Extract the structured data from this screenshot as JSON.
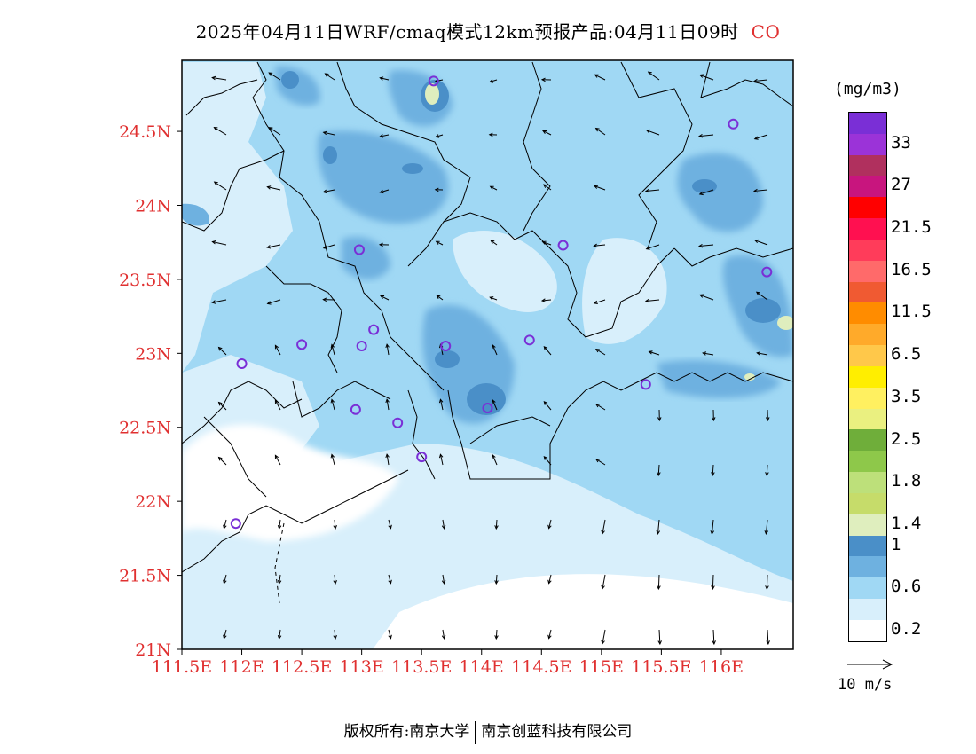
{
  "title": {
    "text": "2025年04月11日WRF/cmaq模式12km预报产品:04月11日09时",
    "species": "CO"
  },
  "axes": {
    "lat_ticks": [
      {
        "value": 24.5,
        "label": "24.5N"
      },
      {
        "value": 24.0,
        "label": "24N"
      },
      {
        "value": 23.5,
        "label": "23.5N"
      },
      {
        "value": 23.0,
        "label": "23N"
      },
      {
        "value": 22.5,
        "label": "22.5N"
      },
      {
        "value": 22.0,
        "label": "22N"
      },
      {
        "value": 21.5,
        "label": "21.5N"
      },
      {
        "value": 21.0,
        "label": "21N"
      }
    ],
    "lon_ticks": [
      {
        "value": 111.5,
        "label": "111.5E"
      },
      {
        "value": 112.0,
        "label": "112E"
      },
      {
        "value": 112.5,
        "label": "112.5E"
      },
      {
        "value": 113.0,
        "label": "113E"
      },
      {
        "value": 113.5,
        "label": "113.5E"
      },
      {
        "value": 114.0,
        "label": "114E"
      },
      {
        "value": 114.5,
        "label": "114.5E"
      },
      {
        "value": 115.0,
        "label": "115E"
      },
      {
        "value": 115.5,
        "label": "115.5E"
      },
      {
        "value": 116.0,
        "label": "116E"
      }
    ],
    "lon_range": [
      111.5,
      116.6
    ],
    "lat_range": [
      21.0,
      24.98
    ]
  },
  "legend": {
    "unit": "(mg/m3)",
    "colors": [
      "#7a2fd6",
      "#9b33d8",
      "#b0305e",
      "#c8157e",
      "#ff0000",
      "#ff1050",
      "#ff3c5a",
      "#ff6a6a",
      "#f05a32",
      "#ff8c00",
      "#ffaa2a",
      "#ffc84a",
      "#ffee00",
      "#fff060",
      "#eaf080",
      "#6fae3a",
      "#8ec84a",
      "#bde07a",
      "#c6dc6a",
      "#dfeebe",
      "#4a8fc8",
      "#6eb1e0",
      "#a0d8f4",
      "#d8effb",
      "#ffffff"
    ],
    "labels": [
      {
        "text": "33",
        "index": 1
      },
      {
        "text": "27",
        "index": 3
      },
      {
        "text": "21.5",
        "index": 5
      },
      {
        "text": "16.5",
        "index": 7
      },
      {
        "text": "11.5",
        "index": 9
      },
      {
        "text": "6.5",
        "index": 11
      },
      {
        "text": "3.5",
        "index": 13
      },
      {
        "text": "2.5",
        "index": 15
      },
      {
        "text": "1.8",
        "index": 17
      },
      {
        "text": "1.4",
        "index": 19
      },
      {
        "text": "1",
        "index": 20
      },
      {
        "text": "0.6",
        "index": 22
      },
      {
        "text": "0.2",
        "index": 24
      }
    ]
  },
  "vector_reference": {
    "label": "10 m/s"
  },
  "stations": [
    {
      "lon": 113.6,
      "lat": 24.84
    },
    {
      "lon": 116.1,
      "lat": 24.55
    },
    {
      "lon": 112.98,
      "lat": 23.7
    },
    {
      "lon": 114.68,
      "lat": 23.73
    },
    {
      "lon": 116.38,
      "lat": 23.55
    },
    {
      "lon": 113.1,
      "lat": 23.16
    },
    {
      "lon": 113.0,
      "lat": 23.05
    },
    {
      "lon": 113.7,
      "lat": 23.05
    },
    {
      "lon": 114.4,
      "lat": 23.09
    },
    {
      "lon": 112.5,
      "lat": 23.06
    },
    {
      "lon": 112.0,
      "lat": 22.93
    },
    {
      "lon": 115.37,
      "lat": 22.79
    },
    {
      "lon": 114.05,
      "lat": 22.63
    },
    {
      "lon": 112.95,
      "lat": 22.62
    },
    {
      "lon": 113.3,
      "lat": 22.53
    },
    {
      "lon": 113.5,
      "lat": 22.3
    },
    {
      "lon": 111.95,
      "lat": 21.85
    }
  ],
  "footer": {
    "left": "版权所有:南京大学",
    "right": "南京创蓝科技有限公司"
  }
}
